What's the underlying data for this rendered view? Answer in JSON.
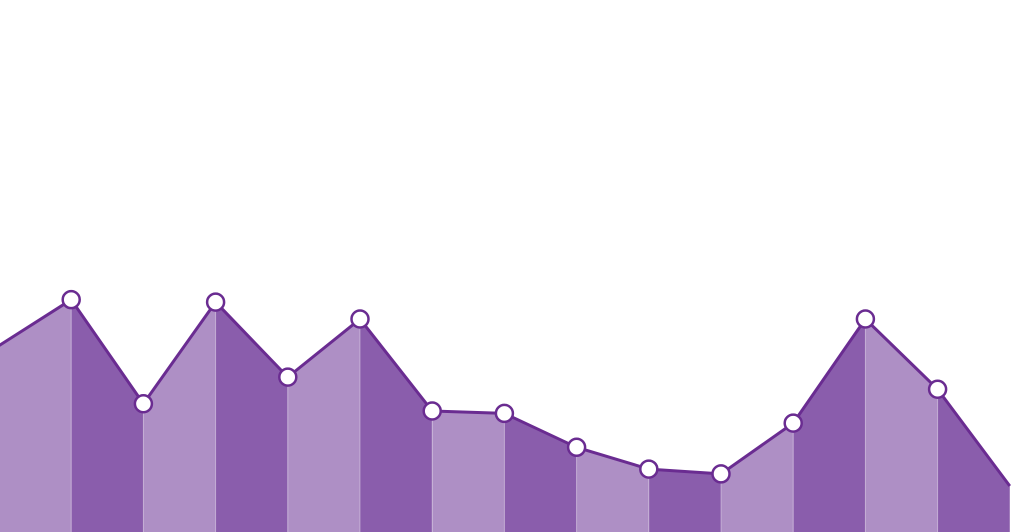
{
  "chart_data": {
    "type": "area",
    "title": "",
    "xlabel": "",
    "ylabel": "",
    "x": [
      0,
      1,
      2,
      3,
      4,
      5,
      6,
      7,
      8,
      9,
      10,
      11,
      12,
      13,
      14
    ],
    "values": [
      77,
      96,
      53,
      95,
      64,
      88,
      50,
      49,
      35,
      26,
      24,
      45,
      88,
      59,
      19
    ],
    "ylim": [
      0,
      100
    ],
    "grid": false,
    "legend": "none",
    "line_color": "#6a2c91",
    "fill_color_light": "#ae8fc5",
    "fill_color_dark": "#8a5dac",
    "marker_fill": "#ffffff",
    "marker_stroke": "#6a2c91"
  }
}
